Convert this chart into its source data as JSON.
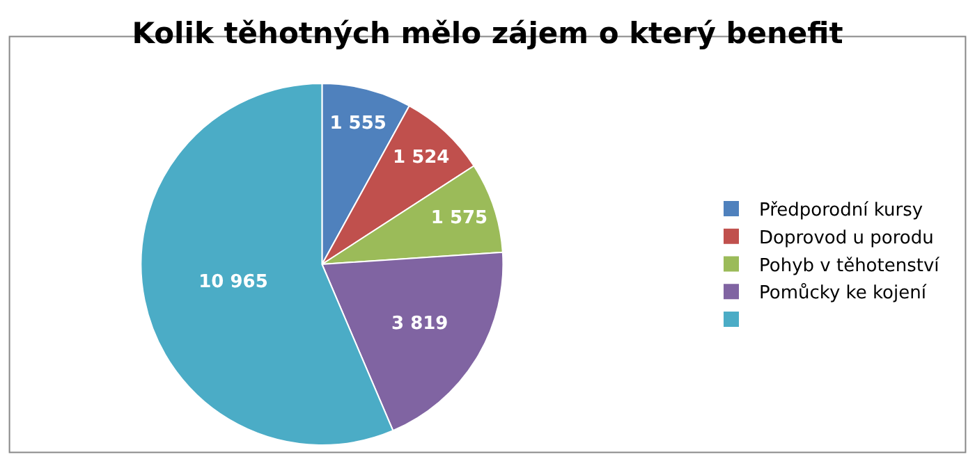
{
  "chart_data": {
    "type": "pie",
    "title": "Kolik těhotných mělo zájem o který benefit",
    "categories": [
      "Předporodní kursy",
      "Doprovod u porodu",
      "Pohyb v těhotenství",
      "Pomůcky ke kojení",
      null
    ],
    "values": [
      1555,
      1524,
      1575,
      3819,
      10965
    ],
    "value_labels": [
      "1 555",
      "1 524",
      "1 575",
      "3 819",
      "10 965"
    ],
    "colors": [
      "#4f81bd",
      "#c0504d",
      "#9bbb59",
      "#8064a2",
      "#4bacc6"
    ],
    "legend": "right"
  }
}
